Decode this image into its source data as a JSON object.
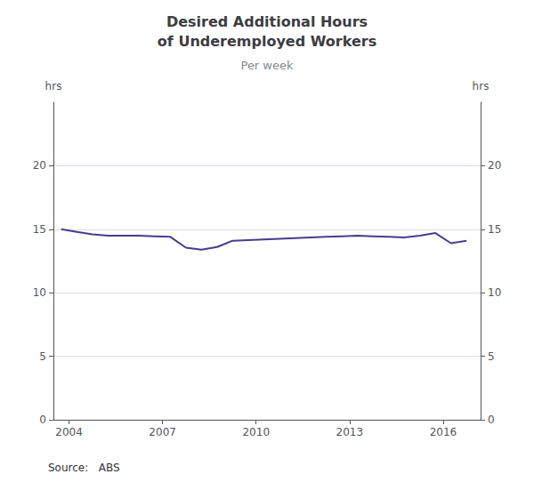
{
  "chart_data": {
    "type": "line",
    "title": "Desired Additional Hours\nof Underemployed Workers",
    "subtitle": "Per week",
    "ylabel": "hrs",
    "y2label": "hrs",
    "annotations": [
      "Source:   ABS"
    ],
    "x": [
      2003.75,
      2004.25,
      2004.75,
      2005.25,
      2005.75,
      2006.25,
      2006.75,
      2007.25,
      2007.75,
      2008.25,
      2008.75,
      2009.25,
      2009.75,
      2010.25,
      2010.75,
      2011.25,
      2011.75,
      2012.25,
      2012.75,
      2013.25,
      2013.75,
      2014.25,
      2014.75,
      2015.25,
      2015.75,
      2016.25,
      2016.75
    ],
    "values": [
      15.0,
      14.8,
      14.6,
      14.5,
      14.5,
      14.5,
      14.45,
      14.4,
      13.55,
      13.4,
      13.6,
      14.1,
      14.15,
      14.2,
      14.25,
      14.3,
      14.35,
      14.4,
      14.45,
      14.5,
      14.45,
      14.4,
      14.35,
      14.5,
      14.7,
      13.9,
      14.1
    ],
    "color": "#4a3b8c",
    "xlim": [
      2003.5,
      2017.2
    ],
    "xticks": [
      2004,
      2007,
      2010,
      2013,
      2016
    ],
    "ylim": [
      0,
      25
    ],
    "yticks": [
      0,
      5,
      10,
      15,
      20
    ],
    "y2lim": [
      0,
      25
    ],
    "y2ticks": [
      0,
      5,
      10,
      15,
      20
    ],
    "grid": true
  }
}
